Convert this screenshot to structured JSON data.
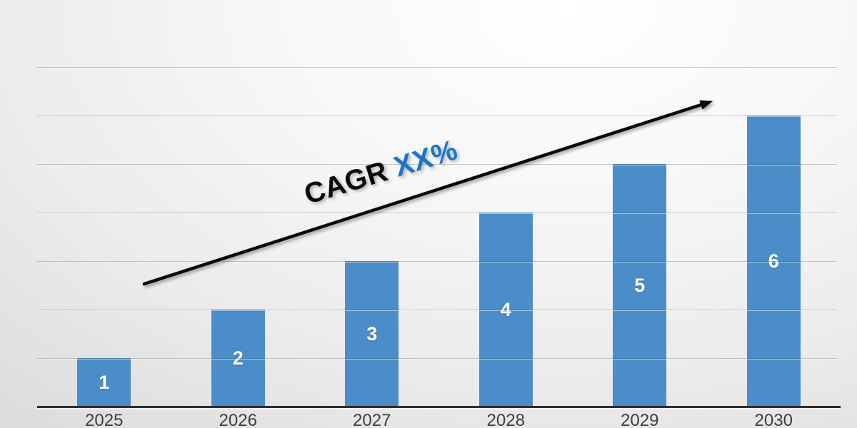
{
  "chart_data": {
    "type": "bar",
    "title": "",
    "xlabel": "",
    "ylabel": "",
    "categories": [
      "2025",
      "2026",
      "2027",
      "2028",
      "2029",
      "2030"
    ],
    "values": [
      1,
      2,
      3,
      4,
      5,
      6
    ],
    "ylim": [
      0,
      7
    ],
    "grid": "horizontal, 7 lines, drawn over bars",
    "legend": "none",
    "bar_color": "#4A8DC8",
    "bar_value_label_color": "#FFFFFF",
    "axis_line_color": "#2E2E2E",
    "gridline_color": "rgba(70,70,70,0.28)",
    "category_label_color": "#3F3F3F",
    "annotation": {
      "prefix": "CAGR ",
      "highlight": "XX%",
      "prefix_color": "#0A0A0A",
      "highlight_color": "#1B76C8",
      "rotation_deg": -17
    },
    "trend_arrow": {
      "x1": 202,
      "y1": 398,
      "x2": 983,
      "y2": 146.5,
      "tip": [
        997,
        142
      ],
      "color": "#0A0A0A"
    }
  }
}
